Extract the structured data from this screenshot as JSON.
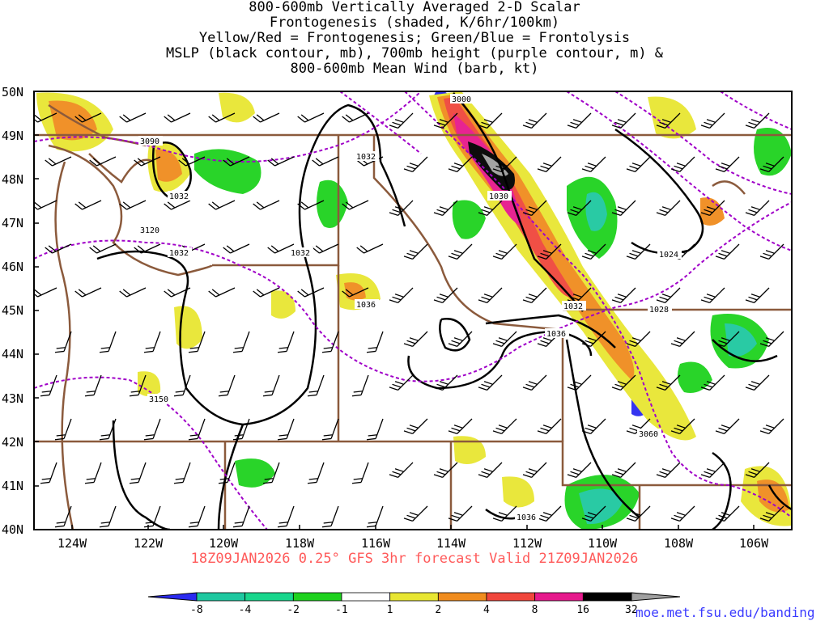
{
  "title_lines": [
    "800-600mb Vertically Averaged 2-D Scalar",
    "Frontogenesis (shaded, K/6hr/100km)",
    "Yellow/Red = Frontogenesis;  Green/Blue = Frontolysis",
    "MSLP (black contour, mb), 700mb height (purple contour, m) &",
    "800-600mb Mean Wind (barb, kt)"
  ],
  "footer": "18Z09JAN2026 0.25° GFS 3hr forecast Valid 21Z09JAN2026",
  "credit": "moe.met.fsu.edu/banding",
  "map": {
    "lon_range": [
      -125,
      -105
    ],
    "lat_range": [
      40,
      50
    ],
    "lat_labels": [
      "40N",
      "41N",
      "42N",
      "43N",
      "44N",
      "45N",
      "46N",
      "47N",
      "48N",
      "49N",
      "50N"
    ],
    "lon_labels": [
      "124W",
      "122W",
      "120W",
      "118W",
      "116W",
      "114W",
      "112W",
      "110W",
      "108W",
      "106W"
    ],
    "mslp_labels": [
      "1032",
      "1032",
      "1032",
      "1032",
      "1036",
      "1032",
      "1036",
      "1030",
      "1028",
      "1024",
      "1036"
    ],
    "height_labels": [
      "3000",
      "3090",
      "3120",
      "3150",
      "3060"
    ]
  },
  "colorbar": {
    "labels": [
      "-8",
      "-4",
      "-2",
      "-1",
      "1",
      "2",
      "4",
      "8",
      "16",
      "32"
    ],
    "colors": [
      "#2a2af0",
      "#1ec8a0",
      "#18d68c",
      "#1ed21e",
      "#ffffff",
      "#e8e632",
      "#f08c1e",
      "#f0463c",
      "#e6198c",
      "#000000",
      "#a0a0a0"
    ]
  },
  "colors": {
    "mslp": "#000000",
    "height": "#a000c8",
    "borders": "#8b5a3c",
    "footer": "#ff5a5a",
    "credit": "#3a3aff"
  }
}
